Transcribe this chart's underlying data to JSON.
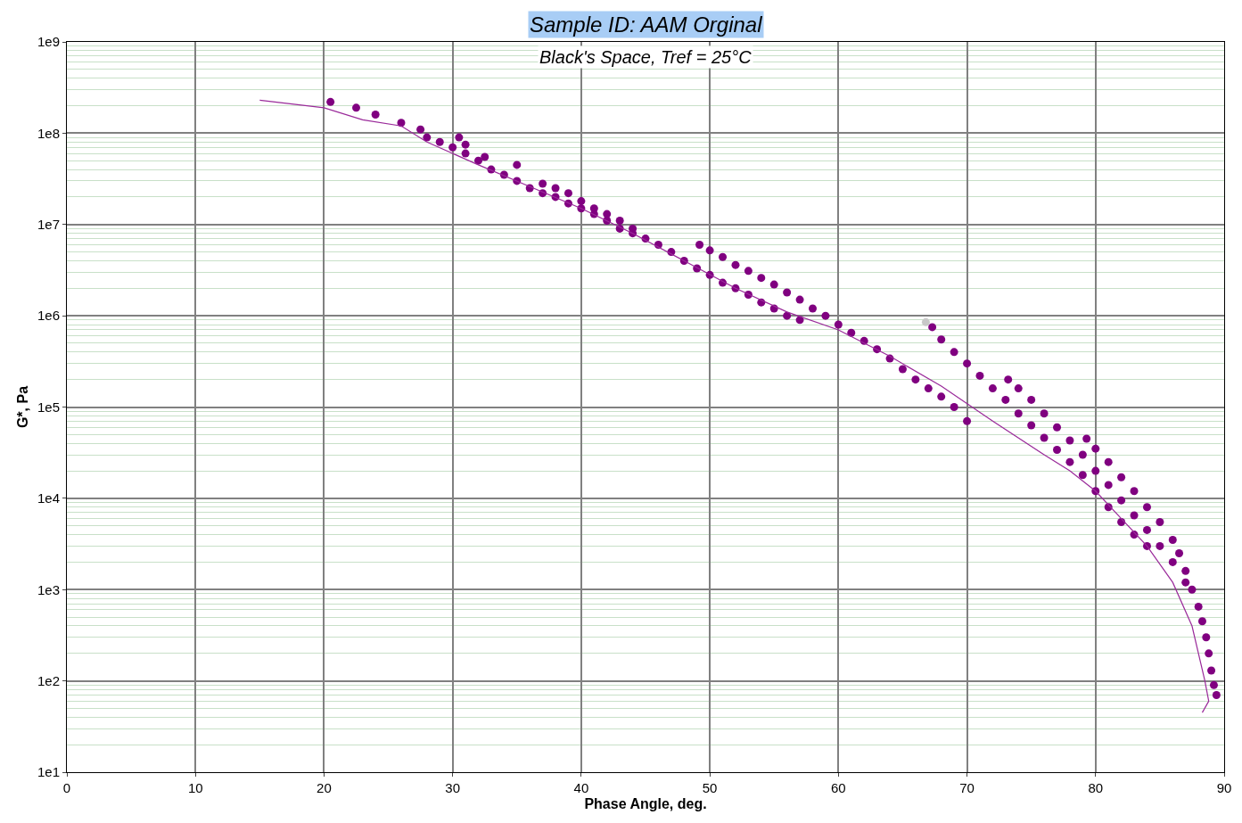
{
  "chart_data": {
    "type": "scatter",
    "title": "Sample ID: AAM Orginal",
    "subtitle": "Black's Space, Tref = 25°C",
    "xlabel": "Phase Angle, deg.",
    "ylabel": "G*, Pa",
    "log": "y",
    "grid": true,
    "marker": "circle",
    "xlim": [
      0,
      90
    ],
    "xticks": [
      0,
      10,
      20,
      30,
      40,
      50,
      60,
      70,
      80,
      90
    ],
    "ylim": [
      10,
      1000000000
    ],
    "yticks": [
      {
        "value": 10,
        "label": "1e1"
      },
      {
        "value": 100,
        "label": "1e2"
      },
      {
        "value": 1000,
        "label": "1e3"
      },
      {
        "value": 10000,
        "label": "1e4"
      },
      {
        "value": 100000,
        "label": "1e5"
      },
      {
        "value": 1000000,
        "label": "1e6"
      },
      {
        "value": 10000000,
        "label": "1e7"
      },
      {
        "value": 100000000,
        "label": "1e8"
      },
      {
        "value": 1000000000,
        "label": "1e9"
      }
    ],
    "series": [
      {
        "type": "scatter",
        "color": "#800080",
        "x": [
          20.5,
          22.5,
          24,
          26,
          27.5,
          28,
          29,
          30,
          31,
          32,
          33,
          34,
          35,
          36,
          37,
          38,
          39,
          40,
          41,
          42,
          43,
          44,
          45,
          46,
          47,
          48,
          49,
          50,
          51,
          52,
          53,
          54,
          55,
          56,
          57,
          30.5,
          31,
          32.5,
          35,
          37,
          38,
          39,
          40,
          41,
          42,
          43,
          44
        ],
        "values": [
          220000000.0,
          190000000.0,
          160000000.0,
          130000000.0,
          110000000.0,
          90000000.0,
          80000000.0,
          70000000.0,
          60000000.0,
          50000000.0,
          40000000.0,
          35000000.0,
          30000000.0,
          25000000.0,
          22000000.0,
          20000000.0,
          17000000.0,
          15000000.0,
          13000000.0,
          11000000.0,
          9000000.0,
          8000000.0,
          7000000.0,
          6000000.0,
          5000000.0,
          4000000.0,
          3300000.0,
          2800000.0,
          2300000.0,
          2000000.0,
          1700000.0,
          1400000.0,
          1200000.0,
          1000000.0,
          900000.0,
          90000000.0,
          75000000.0,
          55000000.0,
          45000000.0,
          28000000.0,
          25000000.0,
          22000000.0,
          18000000.0,
          15000000.0,
          13000000.0,
          11000000.0,
          9000000.0
        ]
      },
      {
        "type": "scatter",
        "color": "#800080",
        "x": [
          49.2,
          50,
          51,
          52,
          53,
          54,
          55,
          56,
          57,
          58,
          59,
          60,
          61,
          62,
          63,
          64,
          65,
          66,
          67,
          68,
          69,
          70
        ],
        "values": [
          6000000.0,
          5200000.0,
          4400000.0,
          3600000.0,
          3100000.0,
          2600000.0,
          2200000.0,
          1800000.0,
          1500000.0,
          1200000.0,
          1000000.0,
          800000.0,
          650000.0,
          530000.0,
          430000.0,
          340000.0,
          260000.0,
          200000.0,
          160000.0,
          130000.0,
          100000.0,
          70000.0
        ]
      },
      {
        "type": "scatter",
        "color": "#800080",
        "x": [
          67.3,
          68,
          69,
          70,
          71,
          72,
          73,
          74,
          75,
          76,
          77,
          78,
          79,
          80,
          81,
          82,
          83,
          84
        ],
        "values": [
          750000.0,
          550000.0,
          400000.0,
          300000.0,
          220000.0,
          160000.0,
          120000.0,
          85000.0,
          63000.0,
          46000.0,
          34000.0,
          25000.0,
          18000.0,
          12000.0,
          8000.0,
          5500.0,
          4000.0,
          3000.0
        ]
      },
      {
        "type": "scatter",
        "color": "#800080",
        "x": [
          73.2,
          74,
          75,
          76,
          77,
          78,
          79,
          80,
          81,
          82,
          83,
          84,
          85,
          86,
          87
        ],
        "values": [
          200000.0,
          160000.0,
          120000.0,
          85000.0,
          60000.0,
          43000.0,
          30000.0,
          20000.0,
          14000.0,
          9500.0,
          6500.0,
          4500.0,
          3000.0,
          2000.0,
          1200.0
        ]
      },
      {
        "type": "scatter",
        "color": "#800080",
        "x": [
          79.3,
          80,
          81,
          82,
          83,
          84,
          85,
          86,
          86.5,
          87,
          87.5,
          88,
          88.3,
          88.6,
          88.8,
          89,
          89.2,
          89.4
        ],
        "values": [
          45000.0,
          35000.0,
          25000.0,
          17000.0,
          12000.0,
          8000.0,
          5500.0,
          3500.0,
          2500.0,
          1600.0,
          1000.0,
          650,
          450,
          300,
          200,
          130,
          90,
          70
        ]
      },
      {
        "type": "scatter",
        "color": "#c8c8c8",
        "x": [
          66.8
        ],
        "values": [
          850000.0
        ]
      },
      {
        "type": "line",
        "marker": "none",
        "color": "#9a2a9a",
        "x": [
          15,
          20,
          23,
          26,
          28,
          32,
          36,
          40,
          44,
          48,
          52,
          56,
          60,
          64,
          68,
          72,
          76,
          78,
          80,
          82,
          84,
          86,
          87.5,
          88.5,
          88.8,
          88.3
        ],
        "values": [
          230000000.0,
          190000000.0,
          140000000.0,
          120000000.0,
          80000000.0,
          45000000.0,
          26000000.0,
          15000000.0,
          8000000.0,
          4000000.0,
          2000000.0,
          1100000.0,
          700000.0,
          360000.0,
          170000.0,
          70000.0,
          30000.0,
          20000.0,
          12000.0,
          6000.0,
          3000.0,
          1200.0,
          400,
          100,
          60,
          45
        ]
      }
    ]
  }
}
